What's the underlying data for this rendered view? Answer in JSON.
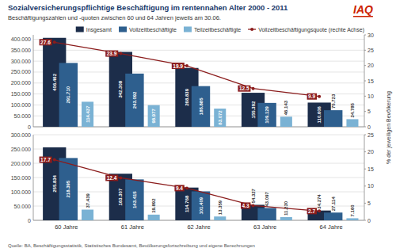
{
  "chart_data": [
    {
      "type": "bar",
      "title": "Sozialversicherungspflichtige Beschäftigung im rentennahen Alter 2000 - 2011",
      "subtitle": "Beschäftigungszahlen und -quoten zwischen 60 und 64 Jahren jeweils am 30.06.",
      "annotations": [
        "IAQ"
      ],
      "y2label": "% der jeweiligen Bevölkerung",
      "categories": [
        null,
        null,
        null,
        null,
        null
      ],
      "series": [
        {
          "name": "Insgesamt",
          "color": "#1c2d4a",
          "values": [
            406462,
            342308,
            268839,
            155392,
            110606
          ],
          "value_labels": [
            "406.462",
            "342.308",
            "268.839",
            "155.392",
            "110.606"
          ]
        },
        {
          "name": "Vollzeitbeschäftigte",
          "color": "#2e5f8e",
          "values": [
            291710,
            243092,
            185885,
            109129,
            75723
          ],
          "value_labels": [
            "291.710",
            "243.092",
            "185.885",
            "109.129",
            "75.723"
          ]
        },
        {
          "name": "Teilzeitbeschäftigte",
          "color": "#7ab2d4",
          "values": [
            114437,
            98977,
            83072,
            46143,
            34785
          ],
          "value_labels": [
            "114.437",
            "98.977",
            "83.072",
            "46.143",
            "34.785"
          ]
        },
        {
          "name": "Vollzeitbeschäftigungsquote (rechte Achse)",
          "type": "line",
          "axis": "y2",
          "color": "#8b1c1c",
          "marker": "circle",
          "values": [
            27.6,
            23.9,
            19.9,
            12.5,
            9.9
          ]
        }
      ],
      "ylim": [
        0,
        420000
      ],
      "yticks": [
        0,
        {
          "value": 50000,
          "label": "50.000"
        },
        {
          "value": 100000,
          "label": "100.000"
        },
        {
          "value": 150000,
          "label": "150.000"
        },
        {
          "value": 200000,
          "label": "200.000"
        },
        {
          "value": 250000,
          "label": "250.000"
        },
        {
          "value": 300000,
          "label": "300.000"
        },
        {
          "value": 350000,
          "label": "350.000"
        },
        {
          "value": 400000,
          "label": "400.000"
        }
      ],
      "y2lim": [
        0,
        30
      ],
      "y2ticks": [
        0,
        5,
        10,
        15,
        20,
        25,
        30
      ],
      "grid": true,
      "legend": "upper right",
      "data_labels": true
    },
    {
      "type": "bar",
      "annotations": [
        "Quelle: BA, Beschäftigungsstatistik, Statistisches Bundesamt, Bevölkerungsfortschreibung und eigene Berechnungen"
      ],
      "categories": [
        "60 Jahre",
        "61 Jahre",
        "62 Jahre",
        "63 Jahre",
        "64 Jahre"
      ],
      "series": [
        {
          "color": "#1c2d4a",
          "values": [
            255834,
            163307,
            114768,
            54327,
            34274
          ],
          "value_labels": [
            "255.834",
            "163.307",
            "114.768",
            "54.327",
            "34.274"
          ]
        },
        {
          "color": "#2e5f8e",
          "values": [
            218395,
            143415,
            101409,
            43097,
            27114
          ],
          "value_labels": [
            "218.395",
            "143.415",
            "101.409",
            "43.097",
            "27.114"
          ]
        },
        {
          "color": "#7ab2d4",
          "values": [
            37439,
            19892,
            13359,
            11230,
            7160
          ],
          "value_labels": [
            "37.439",
            "19.892",
            "13.359",
            "11.230",
            "7.160"
          ]
        },
        {
          "type": "line",
          "axis": "y2",
          "color": "#8b1c1c",
          "marker": "circle",
          "values": [
            17.7,
            12.4,
            9.4,
            4.3,
            2.7
          ]
        }
      ],
      "ylim": [
        0,
        300000
      ],
      "yticks": [
        0,
        {
          "value": 50000,
          "label": "50.000"
        },
        {
          "value": 100000,
          "label": "100.000"
        },
        {
          "value": 150000,
          "label": "150.000"
        },
        {
          "value": 200000,
          "label": "200.000"
        },
        {
          "value": 250000,
          "label": "250.000"
        },
        {
          "value": 300000,
          "label": "300.000"
        }
      ],
      "y2lim": [
        0,
        25
      ],
      "y2ticks": [
        0,
        5,
        10,
        15,
        20,
        25
      ],
      "grid": true,
      "data_labels": true
    }
  ]
}
